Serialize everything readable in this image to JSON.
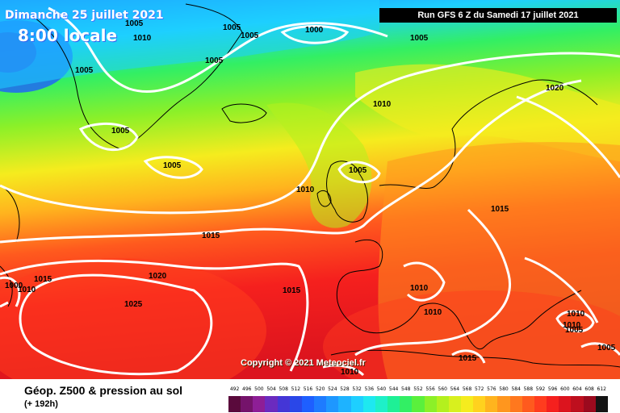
{
  "header": {
    "date": "Dimanche 25 juillet 2021",
    "time": "8:00 locale",
    "run": "Run GFS 6 Z du Samedi 17 juillet 2021"
  },
  "copyright": "Copyright © 2021 Meteociel.fr",
  "footer": {
    "title": "Géop. Z500 & pression au sol",
    "subtitle": "(+ 192h)"
  },
  "legend": {
    "values": [
      "492",
      "496",
      "500",
      "504",
      "508",
      "512",
      "516",
      "520",
      "524",
      "528",
      "532",
      "536",
      "540",
      "544",
      "548",
      "552",
      "556",
      "560",
      "564",
      "568",
      "572",
      "576",
      "580",
      "584",
      "588",
      "592",
      "596",
      "600",
      "604",
      "608",
      "612"
    ],
    "colors": [
      "#5a0a3c",
      "#75136b",
      "#8e1e96",
      "#6b2bbf",
      "#4436d6",
      "#2a47e8",
      "#1e5fff",
      "#1e7bff",
      "#1e97ff",
      "#1eb3ff",
      "#1ecfff",
      "#1ee8f0",
      "#1ef0c8",
      "#1ef096",
      "#32ef64",
      "#5af03c",
      "#8cf028",
      "#b4f01e",
      "#d8f01e",
      "#f5ec1e",
      "#ffd21e",
      "#ffb41e",
      "#ff961e",
      "#ff781e",
      "#ff5a1e",
      "#ff3c1e",
      "#f5201e",
      "#dc141e",
      "#be0f1e",
      "#9b0a1e",
      "#141414"
    ]
  },
  "isobars": [
    "1005",
    "1005",
    "1010",
    "1005",
    "1005",
    "1000",
    "1005",
    "1005",
    "1005",
    "1005",
    "1010",
    "1020",
    "1005",
    "1010",
    "1015",
    "1015",
    "1020",
    "1015",
    "1000",
    "1010",
    "1015",
    "1025",
    "1010",
    "1010",
    "1010",
    "1015",
    "1010",
    "1005",
    "1005",
    "1010"
  ],
  "colors": {
    "isobar": "#ffffff",
    "coast": "#000000"
  }
}
